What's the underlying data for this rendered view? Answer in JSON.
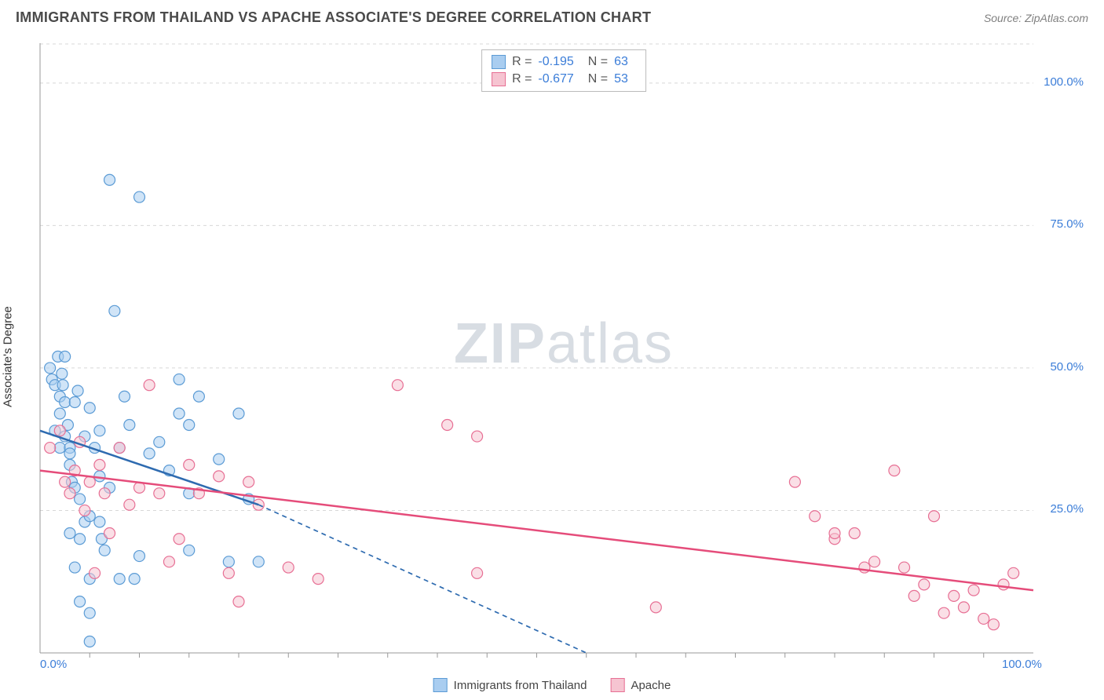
{
  "title": "IMMIGRANTS FROM THAILAND VS APACHE ASSOCIATE'S DEGREE CORRELATION CHART",
  "source": "Source: ZipAtlas.com",
  "y_axis_label": "Associate's Degree",
  "watermark": {
    "part1": "ZIP",
    "part2": "atlas"
  },
  "chart": {
    "type": "scatter",
    "xlim": [
      0,
      100
    ],
    "ylim": [
      0,
      107
    ],
    "x_ticks": [
      0,
      100
    ],
    "x_tick_labels": [
      "0.0%",
      "100.0%"
    ],
    "y_ticks": [
      25,
      50,
      75,
      100
    ],
    "y_tick_labels": [
      "25.0%",
      "50.0%",
      "75.0%",
      "100.0%"
    ],
    "minor_x_ticks": [
      5,
      10,
      15,
      20,
      25,
      30,
      35,
      40,
      45,
      50,
      55,
      60,
      65,
      70,
      75,
      80,
      85,
      90,
      95
    ],
    "background_color": "#ffffff",
    "grid_color": "#d8d8d8",
    "grid_dash": "4,4",
    "axis_color": "#999999",
    "tick_label_color": "#3b7dd8",
    "marker_radius": 7,
    "marker_stroke_width": 1.2,
    "series": [
      {
        "name": "Immigrants from Thailand",
        "fill": "#a9cdf0",
        "stroke": "#5b9bd5",
        "fill_opacity": 0.55,
        "r_value": "-0.195",
        "n_value": "63",
        "regression": {
          "solid": {
            "x1": 0,
            "y1": 39,
            "x2": 22,
            "y2": 26
          },
          "dashed": {
            "x1": 22,
            "y1": 26,
            "x2": 55,
            "y2": 0
          },
          "color": "#2e6bb0",
          "width": 2.5,
          "dash": "6,5"
        },
        "points": [
          [
            1,
            50
          ],
          [
            1.2,
            48
          ],
          [
            1.5,
            39
          ],
          [
            1.5,
            47
          ],
          [
            1.8,
            52
          ],
          [
            2,
            45
          ],
          [
            2,
            36
          ],
          [
            2,
            42
          ],
          [
            2.2,
            49
          ],
          [
            2.3,
            47
          ],
          [
            2.5,
            38
          ],
          [
            2.5,
            44
          ],
          [
            2.5,
            52
          ],
          [
            2.8,
            40
          ],
          [
            3,
            36
          ],
          [
            3,
            35
          ],
          [
            3,
            33
          ],
          [
            3,
            21
          ],
          [
            3.2,
            30
          ],
          [
            3.5,
            29
          ],
          [
            3.5,
            44
          ],
          [
            3.5,
            15
          ],
          [
            3.8,
            46
          ],
          [
            4,
            27
          ],
          [
            4,
            20
          ],
          [
            4,
            9
          ],
          [
            4.5,
            23
          ],
          [
            4.5,
            38
          ],
          [
            5,
            43
          ],
          [
            5,
            24
          ],
          [
            5,
            13
          ],
          [
            5,
            7
          ],
          [
            5,
            2
          ],
          [
            5.5,
            36
          ],
          [
            6,
            23
          ],
          [
            6,
            31
          ],
          [
            6,
            39
          ],
          [
            6.2,
            20
          ],
          [
            6.5,
            18
          ],
          [
            7,
            83
          ],
          [
            7,
            29
          ],
          [
            7.5,
            60
          ],
          [
            8,
            36
          ],
          [
            8,
            13
          ],
          [
            8.5,
            45
          ],
          [
            9,
            40
          ],
          [
            9.5,
            13
          ],
          [
            10,
            17
          ],
          [
            10,
            80
          ],
          [
            11,
            35
          ],
          [
            12,
            37
          ],
          [
            13,
            32
          ],
          [
            14,
            48
          ],
          [
            14,
            42
          ],
          [
            15,
            40
          ],
          [
            15,
            28
          ],
          [
            15,
            18
          ],
          [
            16,
            45
          ],
          [
            18,
            34
          ],
          [
            19,
            16
          ],
          [
            20,
            42
          ],
          [
            21,
            27
          ],
          [
            22,
            16
          ]
        ]
      },
      {
        "name": "Apache",
        "fill": "#f6c4d1",
        "stroke": "#e76f94",
        "fill_opacity": 0.55,
        "r_value": "-0.677",
        "n_value": "53",
        "regression": {
          "solid": {
            "x1": 0,
            "y1": 32,
            "x2": 100,
            "y2": 11
          },
          "color": "#e54c7a",
          "width": 2.5
        },
        "points": [
          [
            1,
            36
          ],
          [
            2,
            39
          ],
          [
            2.5,
            30
          ],
          [
            3,
            28
          ],
          [
            3.5,
            32
          ],
          [
            4,
            37
          ],
          [
            4.5,
            25
          ],
          [
            5,
            30
          ],
          [
            5.5,
            14
          ],
          [
            6,
            33
          ],
          [
            6.5,
            28
          ],
          [
            7,
            21
          ],
          [
            8,
            36
          ],
          [
            9,
            26
          ],
          [
            10,
            29
          ],
          [
            11,
            47
          ],
          [
            12,
            28
          ],
          [
            13,
            16
          ],
          [
            14,
            20
          ],
          [
            15,
            33
          ],
          [
            16,
            28
          ],
          [
            18,
            31
          ],
          [
            19,
            14
          ],
          [
            20,
            9
          ],
          [
            21,
            30
          ],
          [
            22,
            26
          ],
          [
            25,
            15
          ],
          [
            28,
            13
          ],
          [
            36,
            47
          ],
          [
            41,
            40
          ],
          [
            44,
            38
          ],
          [
            44,
            14
          ],
          [
            62,
            8
          ],
          [
            76,
            30
          ],
          [
            78,
            24
          ],
          [
            80,
            20
          ],
          [
            80,
            21
          ],
          [
            82,
            21
          ],
          [
            83,
            15
          ],
          [
            84,
            16
          ],
          [
            86,
            32
          ],
          [
            87,
            15
          ],
          [
            88,
            10
          ],
          [
            89,
            12
          ],
          [
            90,
            24
          ],
          [
            91,
            7
          ],
          [
            92,
            10
          ],
          [
            93,
            8
          ],
          [
            94,
            11
          ],
          [
            95,
            6
          ],
          [
            96,
            5
          ],
          [
            97,
            12
          ],
          [
            98,
            14
          ]
        ]
      }
    ]
  },
  "bottom_legend": [
    {
      "label": "Immigrants from Thailand",
      "fill": "#a9cdf0",
      "stroke": "#5b9bd5"
    },
    {
      "label": "Apache",
      "fill": "#f6c4d1",
      "stroke": "#e76f94"
    }
  ]
}
